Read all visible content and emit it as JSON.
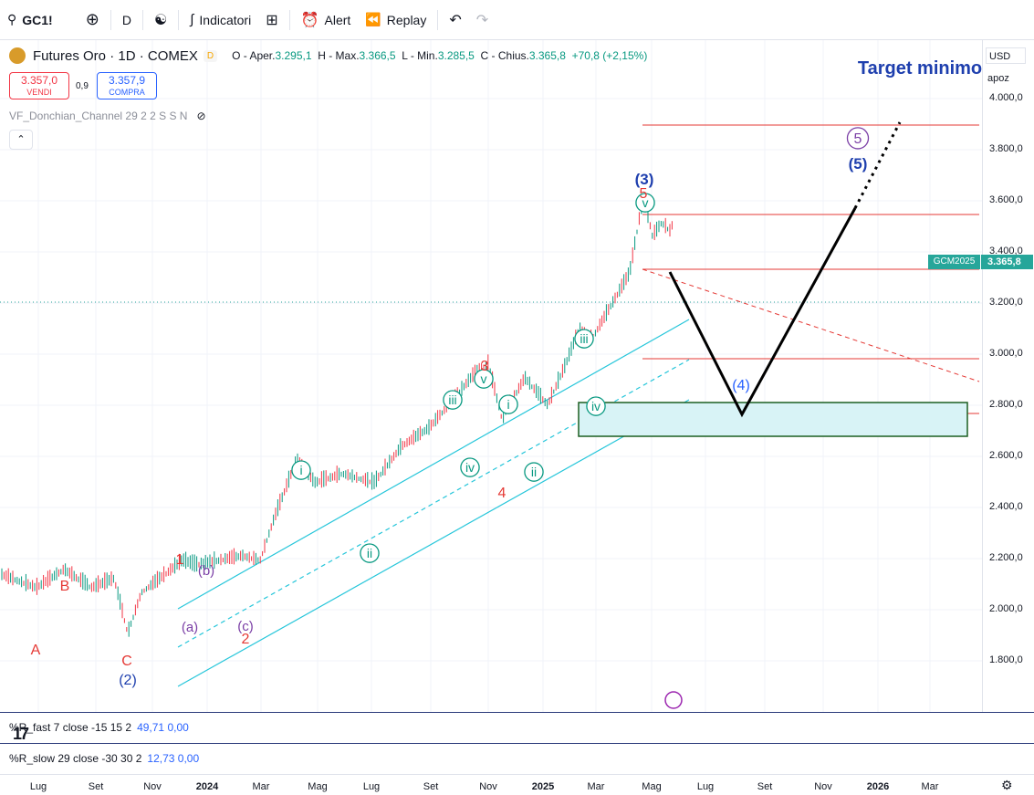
{
  "toolbar": {
    "symbol": "GC1!",
    "interval": "D",
    "indicators_label": "Indicatori",
    "alert_label": "Alert",
    "replay_label": "Replay"
  },
  "legend": {
    "title": "Futures Oro · 1D · COMEX",
    "badge": "D",
    "open_label": "O - Aper.",
    "open": "3.295,1",
    "high_label": "H - Max.",
    "high": "3.366,5",
    "low_label": "L - Min.",
    "low": "3.285,5",
    "close_label": "C - Chius.",
    "close": "3.365,8",
    "change": "+70,8 (+2,15%)"
  },
  "trade": {
    "sell_price": "3.357,0",
    "sell_label": "VENDI",
    "spread": "0,9",
    "buy_price": "3.357,9",
    "buy_label": "COMPRA"
  },
  "indicator": {
    "name": "VF_Donchian_Channel 29 2 2 S S N"
  },
  "price_axis": {
    "currency": "USD",
    "scale_mode": "apoz",
    "ticks": [
      "4.000,0",
      "3.800,0",
      "3.600,0",
      "3.400,0",
      "3.200,0",
      "3.000,0",
      "2.800,0",
      "2.600,0",
      "2.400,0",
      "2.200,0",
      "2.000,0",
      "1.800,0"
    ],
    "last_price": "3.365,8",
    "symbol_tag": "GCM2025"
  },
  "annotations": {
    "target": "Target minimo",
    "A": "A",
    "B": "B",
    "C": "C",
    "wave_2_blue": "(2)",
    "wave_1": "1",
    "wave_2": "2",
    "wave_3": "3",
    "wave_4": "4",
    "wave_5": "5",
    "wave_3_blue": "(3)",
    "wave_4_blue": "(4)",
    "wave_5_blue": "(5)",
    "wave_5_purple": "5",
    "a": "(a)",
    "b": "(b)",
    "c": "(c)",
    "i": "i",
    "ii": "ii",
    "iii": "iii",
    "iv": "iv",
    "v": "v"
  },
  "panes": {
    "r_fast_label": "%R_fast 7 close -15 15 2",
    "r_fast_values": "49,71  0,00",
    "r_slow_label": "%R_slow 29 close -30 30 2",
    "r_slow_values": "12,73  0,00"
  },
  "time_axis": [
    "Lug",
    "Set",
    "Nov",
    "2024",
    "Mar",
    "Mag",
    "Lug",
    "Set",
    "Nov",
    "2025",
    "Mar",
    "Mag",
    "Lug",
    "Set",
    "Nov",
    "2026",
    "Mar"
  ],
  "colors": {
    "up": "#089981",
    "down": "#f23645",
    "channel": "#26c6da",
    "wave_red": "#e53935",
    "wave_blue": "#1e3fae",
    "wave_purple": "#7b3fa6",
    "teal": "#26a69a",
    "projection": "#000000"
  }
}
